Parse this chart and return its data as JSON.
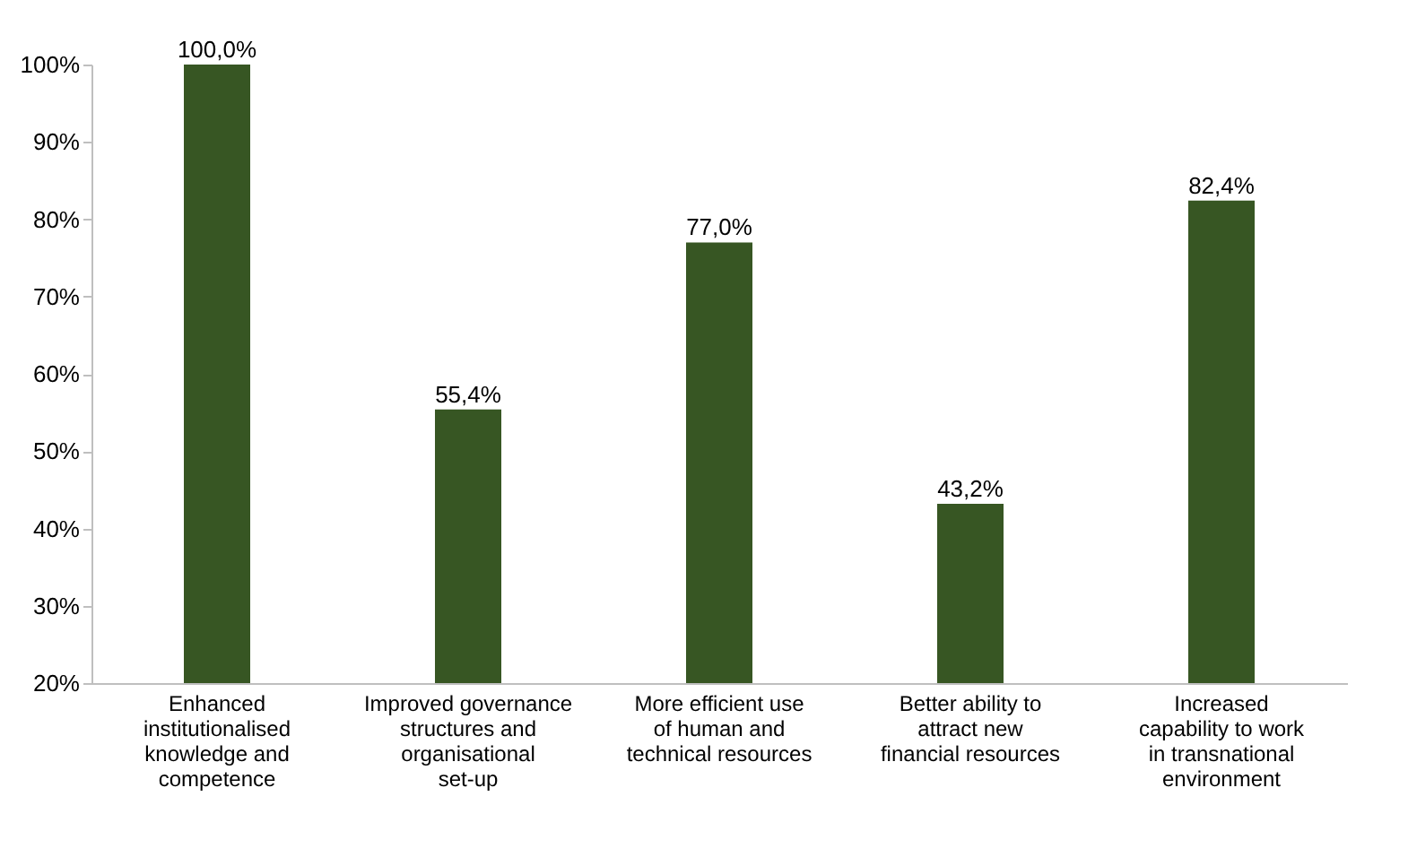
{
  "chart_data": {
    "type": "bar",
    "categories": [
      "Enhanced institutionalised knowledge and competence",
      "Improved governance structures and organisational set-up",
      "More efficient use of human and technical resources",
      "Better ability to attract new financial resources",
      "Increased capability to work in transnational environment"
    ],
    "values": [
      100.0,
      55.4,
      77.0,
      43.2,
      82.4
    ],
    "value_labels": [
      "100,0%",
      "55,4%",
      "77,0%",
      "43,2%",
      "82,4%"
    ],
    "color": "#375623",
    "ylim": [
      20,
      100
    ],
    "yticks": [
      {
        "value": 20,
        "label": "20%"
      },
      {
        "value": 30,
        "label": "30%"
      },
      {
        "value": 40,
        "label": "40%"
      },
      {
        "value": 50,
        "label": "50%"
      },
      {
        "value": 60,
        "label": "60%"
      },
      {
        "value": 70,
        "label": "70%"
      },
      {
        "value": 80,
        "label": "80%"
      },
      {
        "value": 90,
        "label": "90%"
      },
      {
        "value": 100,
        "label": "100%"
      }
    ],
    "grid": false
  }
}
